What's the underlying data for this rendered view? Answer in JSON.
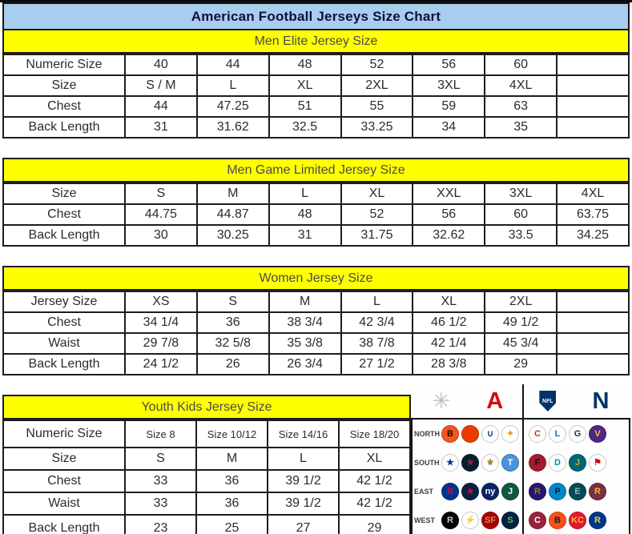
{
  "title": "American Football Jerseys Size Chart",
  "colors": {
    "title_bg": "#a9cdec",
    "section_bg": "#ffff00",
    "afc_red": "#d50a0a",
    "nfc_blue": "#013369"
  },
  "tables": [
    {
      "header": "Men Elite Jersey Size",
      "rows": [
        {
          "label": "Numeric Size",
          "values": [
            "40",
            "44",
            "48",
            "52",
            "56",
            "60",
            ""
          ]
        },
        {
          "label": "Size",
          "values": [
            "S / M",
            "L",
            "XL",
            "2XL",
            "3XL",
            "4XL",
            ""
          ]
        },
        {
          "label": "Chest",
          "values": [
            "44",
            "47.25",
            "51",
            "55",
            "59",
            "63",
            ""
          ]
        },
        {
          "label": "Back Length",
          "values": [
            "31",
            "31.62",
            "32.5",
            "33.25",
            "34",
            "35",
            ""
          ]
        }
      ]
    },
    {
      "header": "Men Game Limited Jersey Size",
      "rows": [
        {
          "label": "Size",
          "values": [
            "S",
            "M",
            "L",
            "XL",
            "XXL",
            "3XL",
            "4XL"
          ]
        },
        {
          "label": "Chest",
          "values": [
            "44.75",
            "44.87",
            "48",
            "52",
            "56",
            "60",
            "63.75"
          ]
        },
        {
          "label": "Back Length",
          "values": [
            "30",
            "30.25",
            "31",
            "31.75",
            "32.62",
            "33.5",
            "34.25"
          ]
        }
      ]
    },
    {
      "header": "Women Jersey Size",
      "rows": [
        {
          "label": "Jersey Size",
          "values": [
            "XS",
            "S",
            "M",
            "L",
            "XL",
            "2XL",
            ""
          ]
        },
        {
          "label": "Chest",
          "values": [
            "34 1/4",
            "36",
            "38 3/4",
            "42 3/4",
            "46 1/2",
            "49 1/2",
            ""
          ]
        },
        {
          "label": "Waist",
          "values": [
            "29 7/8",
            "32 5/8",
            "35 3/8",
            "38 7/8",
            "42 1/4",
            "45 3/4",
            ""
          ]
        },
        {
          "label": "Back Length",
          "values": [
            "24 1/2",
            "26",
            "26 3/4",
            "27 1/2",
            "28 3/8",
            "29",
            ""
          ]
        }
      ]
    },
    {
      "header": "Youth Kids Jersey Size",
      "rows": [
        {
          "label": "Numeric Size",
          "values": [
            "Size 8",
            "Size 10/12",
            "Size 14/16",
            "Size 18/20"
          ]
        },
        {
          "label": "Size",
          "values": [
            "S",
            "M",
            "L",
            "XL"
          ]
        },
        {
          "label": "Chest",
          "values": [
            "33",
            "36",
            "39 1/2",
            "42 1/2"
          ]
        },
        {
          "label": "Waist",
          "values": [
            "33",
            "36",
            "39 1/2",
            "42 1/2"
          ]
        },
        {
          "label": "Back Length",
          "values": [
            "23",
            "25",
            "27",
            "29"
          ]
        }
      ]
    }
  ],
  "nfl": {
    "starburst_glyph": "✳",
    "afc_letter": "A",
    "shield_text": "NFL",
    "nfc_letter": "N",
    "divisions": [
      {
        "name": "NORTH",
        "afc": [
          {
            "team": "bengals",
            "glyph": "B",
            "bg": "#f4561d",
            "fg": "#111111"
          },
          {
            "team": "browns",
            "glyph": "",
            "bg": "#eb3b00",
            "fg": "#ffffff"
          },
          {
            "team": "colts",
            "glyph": "∪",
            "bg": "#ffffff",
            "fg": "#0b3b8c"
          },
          {
            "team": "steelers",
            "glyph": "✦",
            "bg": "#ffffff",
            "fg": "#e0a400"
          }
        ],
        "nfc": [
          {
            "team": "bears",
            "glyph": "C",
            "bg": "#ffffff",
            "fg": "#c83803"
          },
          {
            "team": "lions",
            "glyph": "L",
            "bg": "#ffffff",
            "fg": "#0076b6"
          },
          {
            "team": "packers",
            "glyph": "G",
            "bg": "#ffffff",
            "fg": "#203731"
          },
          {
            "team": "vikings",
            "glyph": "V",
            "bg": "#4f2683",
            "fg": "#ffc62f"
          }
        ]
      },
      {
        "name": "SOUTH",
        "afc": [
          {
            "team": "cowboys",
            "glyph": "★",
            "bg": "#ffffff",
            "fg": "#003594"
          },
          {
            "team": "texans",
            "glyph": "★",
            "bg": "#03202f",
            "fg": "#a71930"
          },
          {
            "team": "saints",
            "glyph": "⚜",
            "bg": "#ffffff",
            "fg": "#a08629"
          },
          {
            "team": "titans",
            "glyph": "T",
            "bg": "#4b92db",
            "fg": "#ffffff"
          }
        ],
        "nfc": [
          {
            "team": "falcons",
            "glyph": "F",
            "bg": "#a71930",
            "fg": "#111111"
          },
          {
            "team": "dolphins",
            "glyph": "D",
            "bg": "#ffffff",
            "fg": "#008e97"
          },
          {
            "team": "jaguars",
            "glyph": "J",
            "bg": "#006778",
            "fg": "#d7a22a"
          },
          {
            "team": "buccaneers",
            "glyph": "⚑",
            "bg": "#ffffff",
            "fg": "#d50a0a"
          }
        ]
      },
      {
        "name": "EAST",
        "afc": [
          {
            "team": "bills",
            "glyph": "B",
            "bg": "#00338d",
            "fg": "#c60c30"
          },
          {
            "team": "patriots",
            "glyph": "★",
            "bg": "#002244",
            "fg": "#c60c30"
          },
          {
            "team": "giants",
            "glyph": "ny",
            "bg": "#0b2265",
            "fg": "#ffffff"
          },
          {
            "team": "jets",
            "glyph": "J",
            "bg": "#125740",
            "fg": "#ffffff"
          }
        ],
        "nfc": [
          {
            "team": "ravens",
            "glyph": "R",
            "bg": "#241773",
            "fg": "#9e7c0c"
          },
          {
            "team": "panthers",
            "glyph": "P",
            "bg": "#0085ca",
            "fg": "#101820"
          },
          {
            "team": "eagles",
            "glyph": "E",
            "bg": "#004c54",
            "fg": "#a5acaf"
          },
          {
            "team": "redskins",
            "glyph": "R",
            "bg": "#773141",
            "fg": "#ffb612"
          }
        ]
      },
      {
        "name": "WEST",
        "afc": [
          {
            "team": "raiders",
            "glyph": "R",
            "bg": "#000000",
            "fg": "#c4c9cc"
          },
          {
            "team": "chargers",
            "glyph": "⚡",
            "bg": "#ffffff",
            "fg": "#f2b705"
          },
          {
            "team": "49ers",
            "glyph": "SF",
            "bg": "#aa0000",
            "fg": "#b3995d"
          },
          {
            "team": "seahawks",
            "glyph": "S",
            "bg": "#002244",
            "fg": "#69be28"
          }
        ],
        "nfc": [
          {
            "team": "cardinals",
            "glyph": "C",
            "bg": "#97233f",
            "fg": "#ffffff"
          },
          {
            "team": "broncos",
            "glyph": "B",
            "bg": "#fb4f14",
            "fg": "#002244"
          },
          {
            "team": "chiefs",
            "glyph": "KC",
            "bg": "#e31837",
            "fg": "#ffb81c"
          },
          {
            "team": "rams",
            "glyph": "R",
            "bg": "#003594",
            "fg": "#ffd100"
          }
        ]
      }
    ]
  }
}
